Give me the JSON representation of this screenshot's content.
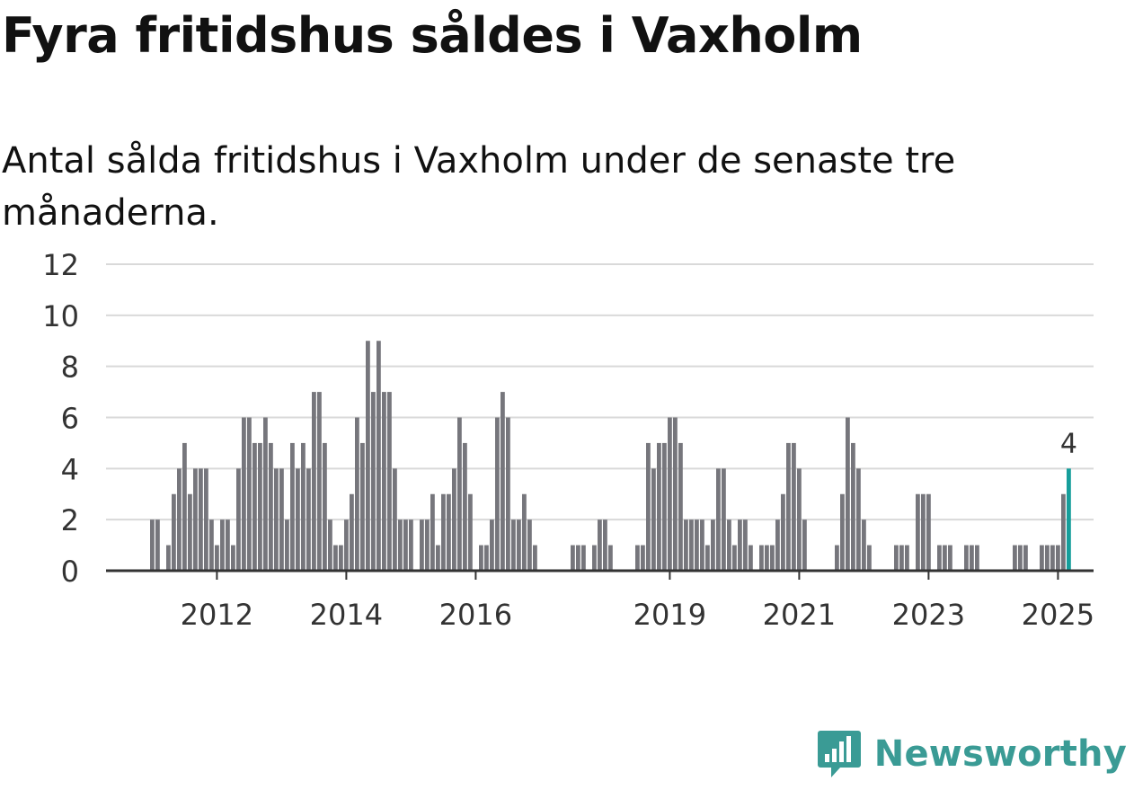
{
  "title": "Fyra fritidshus såldes i Vaxholm",
  "subtitle": "Antal sålda fritidshus i Vaxholm under de senaste tre månaderna.",
  "brand": {
    "name": "Newsworthy",
    "color": "#3a9b95",
    "icon": "bar-chart-speech-icon"
  },
  "colors": {
    "bar": "#76767c",
    "highlight": "#169e9b",
    "grid": "#d9d9d9",
    "axis": "#333333"
  },
  "chart_data": {
    "type": "bar",
    "xlabel": "",
    "ylabel": "",
    "ylim": [
      0,
      12
    ],
    "yticks": [
      0,
      2,
      4,
      6,
      8,
      10,
      12
    ],
    "x_tick_labels": [
      "2012",
      "2014",
      "2016",
      "2019",
      "2021",
      "2023",
      "2025"
    ],
    "x_tick_years": [
      2012,
      2014,
      2016,
      2019,
      2021,
      2023,
      2025
    ],
    "start_year": 2011,
    "grid": true,
    "highlight_last": true,
    "last_value_label": "4",
    "values": [
      2,
      2,
      0,
      1,
      3,
      4,
      5,
      3,
      4,
      4,
      4,
      2,
      1,
      2,
      2,
      1,
      4,
      6,
      6,
      5,
      5,
      6,
      5,
      4,
      4,
      2,
      5,
      4,
      5,
      4,
      7,
      7,
      5,
      2,
      1,
      1,
      2,
      3,
      6,
      5,
      9,
      7,
      9,
      7,
      7,
      4,
      2,
      2,
      2,
      0,
      2,
      2,
      3,
      1,
      3,
      3,
      4,
      6,
      5,
      3,
      0,
      1,
      1,
      2,
      6,
      7,
      6,
      2,
      2,
      3,
      2,
      1,
      0,
      0,
      0,
      0,
      0,
      0,
      1,
      1,
      1,
      0,
      1,
      2,
      2,
      1,
      0,
      0,
      0,
      0,
      1,
      1,
      5,
      4,
      5,
      5,
      6,
      6,
      5,
      2,
      2,
      2,
      2,
      1,
      2,
      4,
      4,
      2,
      1,
      2,
      2,
      1,
      0,
      1,
      1,
      1,
      2,
      3,
      5,
      5,
      4,
      2,
      0,
      0,
      0,
      0,
      0,
      1,
      3,
      6,
      5,
      4,
      2,
      1,
      0,
      0,
      0,
      0,
      1,
      1,
      1,
      0,
      3,
      3,
      3,
      0,
      1,
      1,
      1,
      0,
      0,
      1,
      1,
      1,
      0,
      0,
      0,
      0,
      0,
      0,
      1,
      1,
      1,
      0,
      0,
      1,
      1,
      1,
      1,
      3,
      4
    ]
  }
}
